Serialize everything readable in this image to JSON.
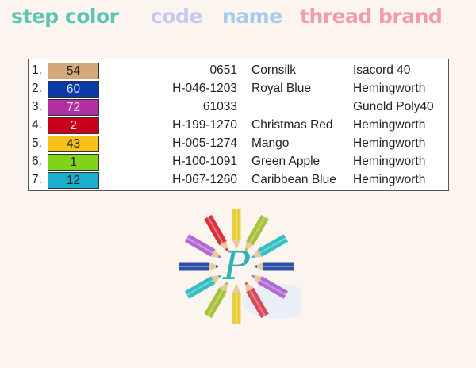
{
  "header": {
    "columns": [
      {
        "label": "step color",
        "color": "#5cc4b4"
      },
      {
        "label": "code",
        "color": "#c7c6f4"
      },
      {
        "label": "name",
        "color": "#a5cbee"
      },
      {
        "label": "thread brand",
        "color": "#f09bb0"
      }
    ]
  },
  "rows": [
    {
      "step": "1.",
      "color_no": "54",
      "swatch": "#d3a97b",
      "text": "#222",
      "code": "0651",
      "name": "Cornsilk",
      "brand": "Isacord 40"
    },
    {
      "step": "2.",
      "color_no": "60",
      "swatch": "#0a3aa8",
      "text": "#dde6ff",
      "code": "H-046-1203",
      "name": "Royal Blue",
      "brand": "Hemingworth"
    },
    {
      "step": "3.",
      "color_no": "72",
      "swatch": "#b02fa2",
      "text": "#f2d8ee",
      "code": "61033",
      "name": "",
      "brand": "Gunold Poly40"
    },
    {
      "step": "4.",
      "color_no": "2",
      "swatch": "#c8001c",
      "text": "#ffe0e0",
      "code": "H-199-1270",
      "name": "Christmas Red",
      "brand": "Hemingworth"
    },
    {
      "step": "5.",
      "color_no": "43",
      "swatch": "#f8c21a",
      "text": "#222",
      "code": "H-005-1274",
      "name": "Mango",
      "brand": "Hemingworth"
    },
    {
      "step": "6.",
      "color_no": "1",
      "swatch": "#82d21a",
      "text": "#222",
      "code": "H-100-1091",
      "name": "Green Apple",
      "brand": "Hemingworth"
    },
    {
      "step": "7.",
      "color_no": "12",
      "swatch": "#18b0cc",
      "text": "#222",
      "code": "H-067-1260",
      "name": "Caribbean Blue",
      "brand": "Hemingworth"
    }
  ],
  "logo": {
    "letter": "P",
    "letter_color": "#2bb3b5",
    "pencil_colors": [
      "#e8cf3a",
      "#a7c23a",
      "#35bfc4",
      "#2f4fa8",
      "#b36ad0",
      "#d94a5a",
      "#e8cf3a",
      "#a7c23a",
      "#35bfc4",
      "#2f4fa8",
      "#b36ad0",
      "#d8333a"
    ]
  }
}
